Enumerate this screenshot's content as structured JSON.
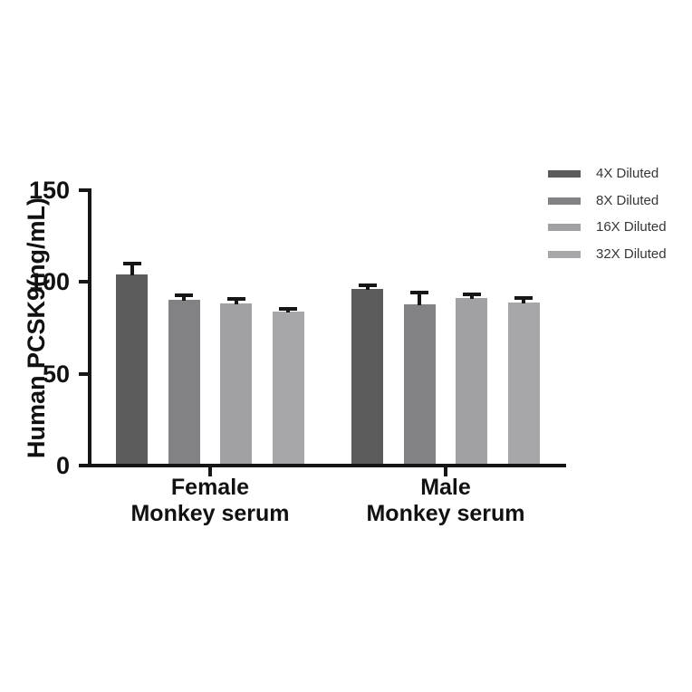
{
  "figure": {
    "background": "#ffffff",
    "axis_color": "#161616",
    "text_color": "#111111"
  },
  "chart_data": {
    "type": "bar",
    "title": "",
    "xlabel": "",
    "ylabel": "Human PCSK9(ng/mL)",
    "ylim": [
      0,
      150
    ],
    "yticks": [
      0,
      50,
      100,
      150
    ],
    "grid": false,
    "legend_position": "top-right",
    "error_bars": "upper-only",
    "groups": [
      {
        "label_line1": "Female",
        "label_line2": "Monkey serum"
      },
      {
        "label_line1": "Male",
        "label_line2": "Monkey serum"
      }
    ],
    "series": [
      {
        "name": "4X Diluted",
        "color": "#5c5c5c",
        "values": [
          104.0,
          96.0
        ],
        "errors": [
          6.0,
          2.2
        ]
      },
      {
        "name": "8X Diluted",
        "color": "#828284",
        "values": [
          90.5,
          88.0
        ],
        "errors": [
          2.5,
          6.0
        ]
      },
      {
        "name": "16X Diluted",
        "color": "#a1a1a3",
        "values": [
          88.5,
          91.5
        ],
        "errors": [
          2.5,
          2.0
        ]
      },
      {
        "name": "32X Diluted",
        "color": "#a7a7a9",
        "values": [
          84.0,
          89.0
        ],
        "errors": [
          1.2,
          2.5
        ]
      }
    ]
  }
}
